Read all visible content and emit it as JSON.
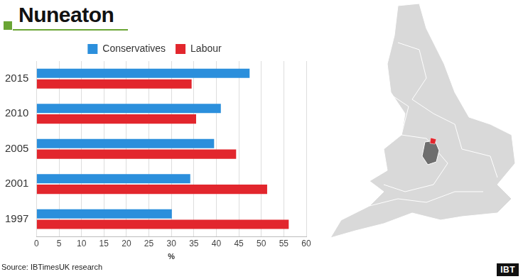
{
  "chart_data": {
    "type": "bar",
    "title": "Nuneaton",
    "orientation": "horizontal",
    "categories": [
      "2015",
      "2010",
      "2005",
      "2001",
      "1997"
    ],
    "series": [
      {
        "name": "Conservatives",
        "color": "#2b8fdc",
        "values": [
          47.4,
          41,
          39.5,
          34.2,
          30.1
        ]
      },
      {
        "name": "Labour",
        "color": "#e2262d",
        "values": [
          34.5,
          35.5,
          44.4,
          51.3,
          56.1
        ]
      }
    ],
    "xlabel": "%",
    "xlim": [
      0,
      60
    ],
    "xticks": [
      0,
      5,
      10,
      15,
      20,
      25,
      30,
      35,
      40,
      45,
      50,
      55,
      60
    ],
    "grid": true,
    "legend": "top",
    "source": "Source: IBTimesUK research",
    "logo": "IBT"
  }
}
